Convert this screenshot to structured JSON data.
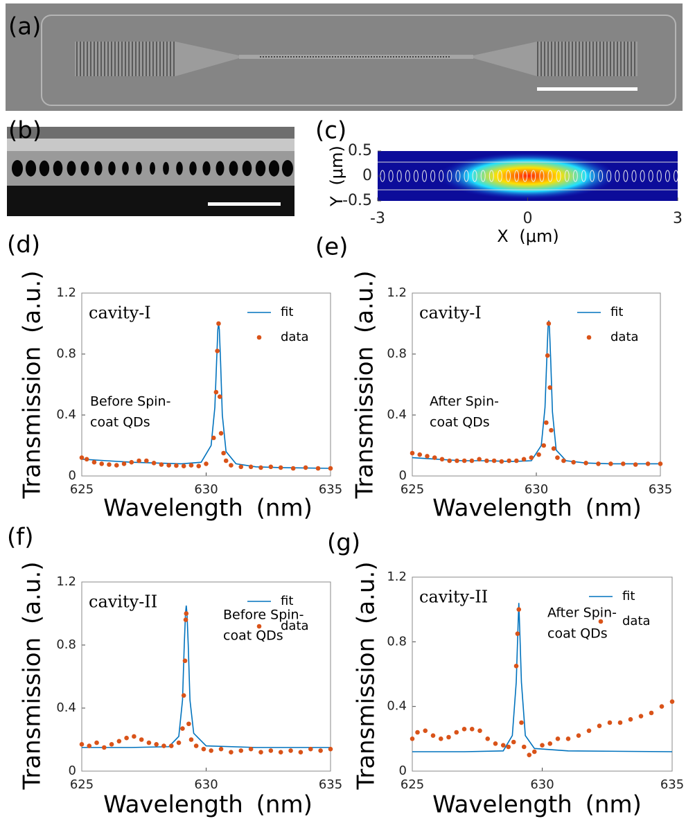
{
  "figure": {
    "a": "(a)",
    "b": "(b)"
  },
  "chart_data": [
    {
      "type": "image",
      "panel": "(c)",
      "xlabel": "X (μm)",
      "ylabel": "Y (μm)",
      "xlim": [
        -3,
        3
      ],
      "xticks": [
        -3,
        0,
        3
      ],
      "ylim": [
        -0.5,
        0.5
      ],
      "yticks": [
        -0.5,
        0,
        0.5
      ]
    },
    {
      "type": "scatter",
      "panel": "(d)",
      "xlabel": "Wavelength (nm)",
      "ylabel": "Transmission (a.u.)",
      "label": "cavity-I",
      "note": [
        "Before Spin-",
        "coat QDs"
      ],
      "xlim": [
        625,
        635
      ],
      "xticks": [
        625,
        630,
        635
      ],
      "ylim": [
        0,
        1.2
      ],
      "yticks": [
        0,
        0.4,
        0.8,
        1.2
      ],
      "series": [
        {
          "name": "fit",
          "color": "#0072bd",
          "mark": "line",
          "x": [
            625,
            626,
            627,
            628,
            629,
            629.8,
            630.2,
            630.35,
            630.42,
            630.47,
            630.5,
            630.53,
            630.58,
            630.65,
            630.8,
            631.2,
            632,
            633,
            635
          ],
          "values": [
            0.11,
            0.1,
            0.09,
            0.085,
            0.08,
            0.09,
            0.2,
            0.45,
            0.75,
            0.96,
            1.0,
            0.96,
            0.75,
            0.4,
            0.16,
            0.08,
            0.06,
            0.055,
            0.05
          ]
        },
        {
          "name": "data",
          "color": "#d95319",
          "mark": "dot",
          "x": [
            625,
            625.2,
            625.5,
            625.8,
            626.1,
            626.4,
            626.7,
            627,
            627.3,
            627.6,
            627.9,
            628.2,
            628.5,
            628.8,
            629.1,
            629.4,
            629.7,
            630,
            630.3,
            630.4,
            630.45,
            630.5,
            630.55,
            630.6,
            630.7,
            630.8,
            631,
            631.4,
            631.8,
            632.2,
            632.6,
            633,
            633.5,
            634,
            634.5,
            635
          ],
          "values": [
            0.12,
            0.11,
            0.09,
            0.08,
            0.075,
            0.07,
            0.08,
            0.09,
            0.1,
            0.1,
            0.085,
            0.075,
            0.07,
            0.068,
            0.065,
            0.07,
            0.065,
            0.08,
            0.25,
            0.55,
            0.82,
            1.0,
            0.52,
            0.28,
            0.15,
            0.1,
            0.07,
            0.06,
            0.06,
            0.055,
            0.06,
            0.055,
            0.05,
            0.055,
            0.05,
            0.05
          ]
        }
      ]
    },
    {
      "type": "scatter",
      "panel": "(e)",
      "xlabel": "Wavelength (nm)",
      "ylabel": "Transmission (a.u.)",
      "label": "cavity-I",
      "note": [
        "After Spin-",
        "coat QDs"
      ],
      "xlim": [
        625,
        635
      ],
      "xticks": [
        625,
        630,
        635
      ],
      "ylim": [
        0,
        1.2
      ],
      "yticks": [
        0,
        0.4,
        0.8,
        1.2
      ],
      "series": [
        {
          "name": "fit",
          "color": "#0072bd",
          "mark": "line",
          "x": [
            625,
            626,
            627,
            628,
            629,
            629.8,
            630.2,
            630.35,
            630.42,
            630.47,
            630.5,
            630.53,
            630.58,
            630.65,
            630.8,
            631.2,
            632,
            633,
            635
          ],
          "values": [
            0.12,
            0.11,
            0.1,
            0.1,
            0.095,
            0.1,
            0.2,
            0.45,
            0.76,
            0.97,
            1.02,
            0.97,
            0.76,
            0.42,
            0.17,
            0.1,
            0.085,
            0.08,
            0.08
          ]
        },
        {
          "name": "data",
          "color": "#d95319",
          "mark": "dot",
          "x": [
            625,
            625.3,
            625.6,
            625.9,
            626.2,
            626.5,
            626.8,
            627.1,
            627.4,
            627.7,
            628,
            628.3,
            628.6,
            628.9,
            629.2,
            629.5,
            629.8,
            630.1,
            630.3,
            630.4,
            630.45,
            630.5,
            630.55,
            630.6,
            630.7,
            630.85,
            631.1,
            631.5,
            632,
            632.5,
            633,
            633.5,
            634,
            634.5,
            635
          ],
          "values": [
            0.15,
            0.14,
            0.13,
            0.12,
            0.11,
            0.1,
            0.1,
            0.1,
            0.1,
            0.11,
            0.1,
            0.1,
            0.095,
            0.1,
            0.1,
            0.11,
            0.12,
            0.14,
            0.2,
            0.35,
            0.79,
            1.0,
            0.58,
            0.3,
            0.18,
            0.12,
            0.1,
            0.09,
            0.085,
            0.08,
            0.08,
            0.08,
            0.075,
            0.08,
            0.08
          ]
        }
      ]
    },
    {
      "type": "scatter",
      "panel": "(f)",
      "xlabel": "Wavelength (nm)",
      "ylabel": "Transmission (a.u.)",
      "label": "cavity-II",
      "note": [
        "Before Spin-",
        "coat QDs"
      ],
      "xlim": [
        625,
        635
      ],
      "xticks": [
        625,
        630,
        635
      ],
      "ylim": [
        0,
        1.2
      ],
      "yticks": [
        0,
        0.4,
        0.8,
        1.2
      ],
      "series": [
        {
          "name": "fit",
          "color": "#0072bd",
          "mark": "line",
          "x": [
            625,
            627,
            628.5,
            628.9,
            629.05,
            629.12,
            629.17,
            629.2,
            629.23,
            629.28,
            629.35,
            629.5,
            630,
            632,
            635
          ],
          "values": [
            0.15,
            0.15,
            0.155,
            0.22,
            0.45,
            0.8,
            1.0,
            1.05,
            1.0,
            0.8,
            0.45,
            0.24,
            0.16,
            0.15,
            0.15
          ]
        },
        {
          "name": "data",
          "color": "#d95319",
          "mark": "dot",
          "x": [
            625,
            625.3,
            625.6,
            625.9,
            626.2,
            626.5,
            626.8,
            627.1,
            627.4,
            627.7,
            628,
            628.3,
            628.6,
            628.9,
            629.05,
            629.1,
            629.15,
            629.18,
            629.2,
            629.3,
            629.4,
            629.6,
            629.9,
            630.2,
            630.6,
            631,
            631.4,
            631.8,
            632.2,
            632.6,
            633,
            633.4,
            633.8,
            634.2,
            634.6,
            635
          ],
          "values": [
            0.17,
            0.16,
            0.18,
            0.15,
            0.17,
            0.19,
            0.21,
            0.22,
            0.2,
            0.18,
            0.17,
            0.16,
            0.16,
            0.18,
            0.27,
            0.48,
            0.7,
            0.96,
            1.0,
            0.3,
            0.2,
            0.16,
            0.14,
            0.13,
            0.14,
            0.12,
            0.13,
            0.14,
            0.12,
            0.13,
            0.12,
            0.13,
            0.12,
            0.14,
            0.13,
            0.14
          ]
        }
      ]
    },
    {
      "type": "scatter",
      "panel": "(g)",
      "xlabel": "Wavelength (nm)",
      "ylabel": "Transmission (a.u.)",
      "label": "cavity-II",
      "note": [
        "After Spin-",
        "coat QDs"
      ],
      "xlim": [
        625,
        635
      ],
      "xticks": [
        625,
        630,
        635
      ],
      "ylim": [
        0,
        1.2
      ],
      "yticks": [
        0,
        0.4,
        0.8,
        1.2
      ],
      "series": [
        {
          "name": "fit",
          "color": "#0072bd",
          "mark": "line",
          "x": [
            625,
            627,
            628.5,
            628.85,
            629,
            629.07,
            629.1,
            629.13,
            629.2,
            629.35,
            629.7,
            631,
            635
          ],
          "values": [
            0.12,
            0.12,
            0.125,
            0.22,
            0.55,
            0.9,
            1.04,
            0.9,
            0.55,
            0.22,
            0.14,
            0.125,
            0.12
          ]
        },
        {
          "name": "data",
          "color": "#d95319",
          "mark": "dot",
          "x": [
            625,
            625.2,
            625.5,
            625.8,
            626.1,
            626.4,
            626.7,
            627,
            627.3,
            627.6,
            627.9,
            628.2,
            628.5,
            628.7,
            628.9,
            629,
            629.05,
            629.1,
            629.2,
            629.3,
            629.5,
            629.7,
            630,
            630.3,
            630.6,
            631,
            631.4,
            631.8,
            632.2,
            632.6,
            633,
            633.4,
            633.8,
            634.2,
            634.6,
            635
          ],
          "values": [
            0.2,
            0.24,
            0.25,
            0.22,
            0.2,
            0.21,
            0.24,
            0.26,
            0.26,
            0.25,
            0.2,
            0.17,
            0.16,
            0.15,
            0.18,
            0.65,
            0.85,
            1.0,
            0.3,
            0.15,
            0.1,
            0.12,
            0.16,
            0.17,
            0.2,
            0.2,
            0.22,
            0.25,
            0.28,
            0.3,
            0.3,
            0.32,
            0.34,
            0.36,
            0.4,
            0.43
          ]
        }
      ]
    }
  ]
}
